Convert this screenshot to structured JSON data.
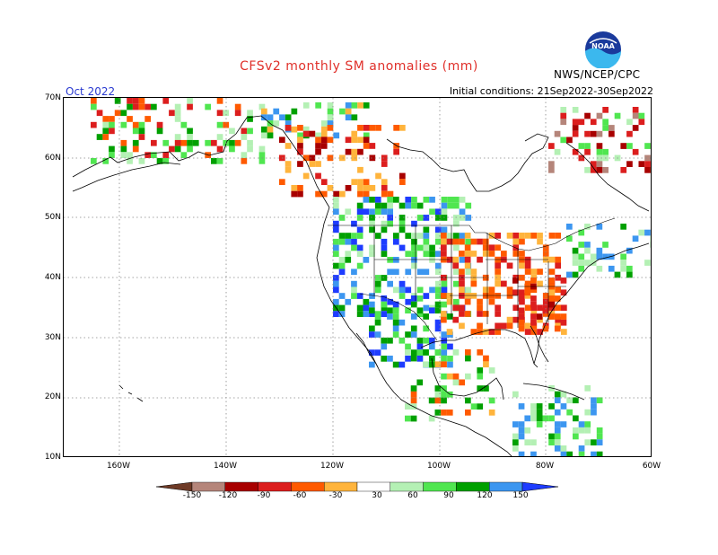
{
  "header": {
    "title": "CFSv2 monthly SM anomalies (mm)",
    "month": "Oct 2022",
    "initial_conditions": "Initial conditions: 21Sep2022-30Sep2022",
    "agency": "NWS/NCEP/CPC",
    "logo_text": "NOAA"
  },
  "map": {
    "lat_labels": [
      "70N",
      "60N",
      "50N",
      "40N",
      "30N",
      "20N",
      "10N"
    ],
    "lon_labels": [
      "160W",
      "140W",
      "120W",
      "100W",
      "80W",
      "60W"
    ],
    "extent": {
      "lon_min": -170,
      "lon_max": -60,
      "lat_min": 10,
      "lat_max": 70
    }
  },
  "colorbar": {
    "labels": [
      "-150",
      "-120",
      "-90",
      "-60",
      "-30",
      "30",
      "60",
      "90",
      "120",
      "150"
    ],
    "colors": [
      "#6e3a26",
      "#b5857a",
      "#a80000",
      "#dc1e1e",
      "#ff5a00",
      "#ffb43c",
      "#ffffff",
      "#b4f0b4",
      "#50e650",
      "#00a000",
      "#3c96f0",
      "#1e3cff"
    ]
  },
  "colors": {
    "title": "#e0302a",
    "month": "#2a3ad0",
    "gridline": "#888888"
  }
}
